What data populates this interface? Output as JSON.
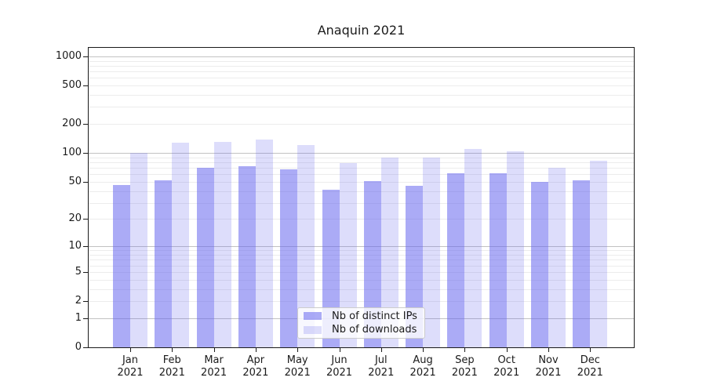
{
  "chart_data": {
    "type": "bar",
    "title": "Anaquin 2021",
    "categories": [
      "Jan 2021",
      "Feb 2021",
      "Mar 2021",
      "Apr 2021",
      "May 2021",
      "Jun 2021",
      "Jul 2021",
      "Aug 2021",
      "Sep 2021",
      "Oct 2021",
      "Nov 2021",
      "Dec 2021"
    ],
    "series": [
      {
        "name": "Nb of distinct IPs",
        "values": [
          46,
          52,
          70,
          73,
          67,
          41,
          51,
          45,
          61,
          61,
          50,
          52
        ]
      },
      {
        "name": "Nb of downloads",
        "values": [
          100,
          127,
          131,
          138,
          120,
          79,
          89,
          89,
          111,
          104,
          70,
          83
        ]
      }
    ],
    "xlabel": "",
    "ylabel": "",
    "yscale": "log10(value+1)",
    "yticks": [
      0,
      1,
      2,
      5,
      10,
      20,
      50,
      100,
      200,
      500,
      1000
    ],
    "major_grid_values": [
      1,
      10,
      100,
      1000
    ],
    "minor_grid_values": [
      2,
      3,
      4,
      5,
      6,
      7,
      8,
      9,
      20,
      30,
      40,
      50,
      60,
      70,
      80,
      90,
      200,
      300,
      400,
      500,
      600,
      700,
      800,
      900
    ],
    "ylim": [
      0,
      1225
    ],
    "grid": "horizontal major+minor",
    "legend": {
      "entries": [
        "Nb of distinct IPs",
        "Nb of downloads"
      ],
      "position": "lower center",
      "frame": true
    }
  },
  "colors": {
    "bar_ips": "rgba(102,102,238,0.55)",
    "bar_downloads": "rgba(102,102,238,0.22)",
    "grid_major": "#c2c2c2",
    "grid_minor": "#ececec",
    "spine": "#1a1a1a",
    "text": "#1a1a1a",
    "legend_border": "#cccccc"
  }
}
